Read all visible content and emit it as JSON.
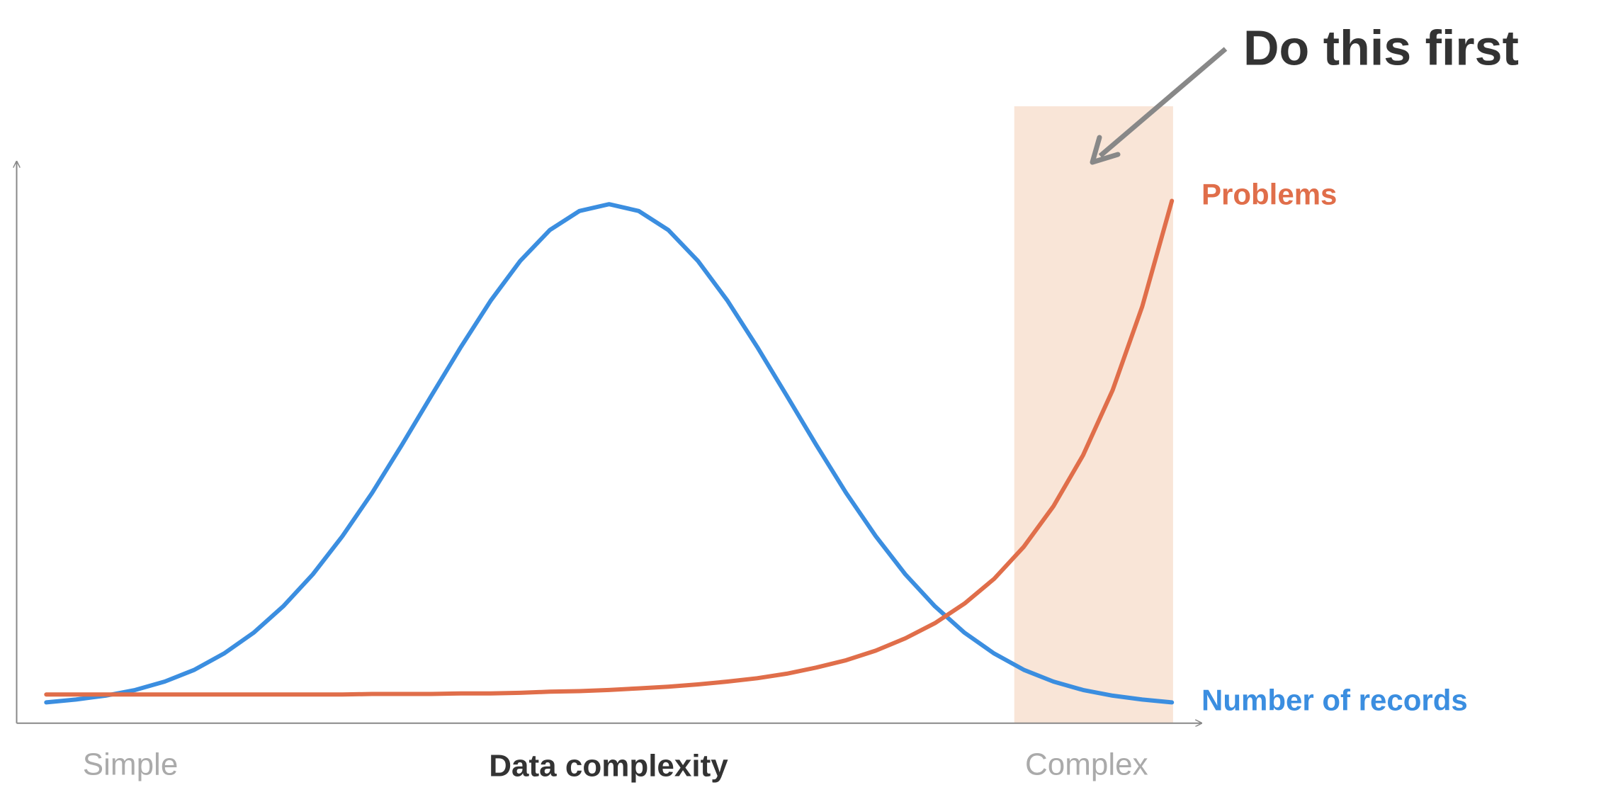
{
  "chart_data": {
    "type": "line",
    "annotation": "Do this first",
    "xlabel": "Data complexity",
    "x": [
      2.5,
      5,
      7.5,
      10,
      12.5,
      15,
      17.5,
      20,
      22.5,
      25,
      27.5,
      30,
      32.5,
      35,
      37.5,
      40,
      42.5,
      45,
      47.5,
      50,
      52.5,
      55,
      57.5,
      60,
      62.5,
      65,
      67.5,
      70,
      72.5,
      75,
      77.5,
      80,
      82.5,
      85,
      87.5,
      90,
      92.5,
      95,
      97.5
    ],
    "series": [
      {
        "name": "Number of records",
        "color": "#3b8ee0",
        "values": [
          3.7,
          4.2,
          4.9,
          5.9,
          7.4,
          9.5,
          12.4,
          16.1,
          20.8,
          26.5,
          33.3,
          41.0,
          49.5,
          58.3,
          67.0,
          75.2,
          82.3,
          87.8,
          91.2,
          92.4,
          91.2,
          87.8,
          82.3,
          75.2,
          67.0,
          58.3,
          49.5,
          41.0,
          33.3,
          26.5,
          20.8,
          16.1,
          12.4,
          9.5,
          7.4,
          5.9,
          4.9,
          4.2,
          3.7
        ]
      },
      {
        "name": "Problems",
        "color": "#e06e4a",
        "values": [
          5.1,
          5.1,
          5.1,
          5.1,
          5.1,
          5.1,
          5.1,
          5.1,
          5.1,
          5.1,
          5.1,
          5.2,
          5.2,
          5.2,
          5.3,
          5.3,
          5.4,
          5.6,
          5.7,
          5.9,
          6.2,
          6.5,
          6.9,
          7.4,
          8.0,
          8.8,
          9.9,
          11.2,
          12.9,
          15.1,
          17.8,
          21.3,
          25.7,
          31.4,
          38.6,
          47.7,
          59.3,
          74.2,
          93.0
        ]
      }
    ],
    "xlim": [
      0,
      100
    ],
    "ylim": [
      0,
      100
    ],
    "xticks": [
      {
        "value": 9.6,
        "label": "Simple"
      },
      {
        "value": 90.3,
        "label": "Complex"
      }
    ],
    "highlight": [
      84.2,
      97.6
    ],
    "highlight_color": "#f9e5d7"
  }
}
